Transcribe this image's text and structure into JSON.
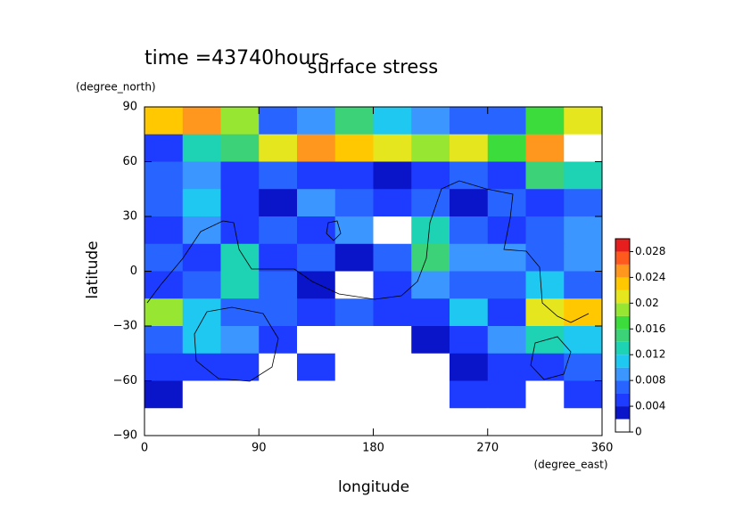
{
  "chart_data": {
    "type": "contour",
    "title": "surface stress",
    "subtitle": "time =43740hours",
    "x_label": "longitude",
    "x_unit": "(degree_east)",
    "y_label": "latitude",
    "y_unit": "(degree_north)",
    "xlim": [
      0,
      360
    ],
    "xticks": [
      0,
      90,
      180,
      270,
      360
    ],
    "ylim": [
      -90,
      90
    ],
    "yticks": [
      {
        "value": -90,
        "label": "−90"
      },
      {
        "value": -60,
        "label": "−60"
      },
      {
        "value": -30,
        "label": "−30"
      },
      0,
      30,
      60,
      90
    ],
    "x": [
      15,
      45,
      75,
      105,
      135,
      165,
      195,
      225,
      255,
      285,
      315,
      345
    ],
    "y": [
      82.5,
      67.5,
      52.5,
      37.5,
      22.5,
      7.5,
      -7.5,
      -22.5,
      -37.5,
      -52.5,
      -67.5,
      -82.5
    ],
    "z": [
      [
        0.022,
        0.024,
        0.018,
        0.006,
        0.008,
        0.014,
        0.01,
        0.008,
        0.006,
        0.006,
        0.016,
        0.02
      ],
      [
        0.004,
        0.012,
        0.014,
        0.02,
        0.024,
        0.022,
        0.02,
        0.018,
        0.02,
        0.016,
        0.024,
        0
      ],
      [
        0.006,
        0.008,
        0.004,
        0.006,
        0.004,
        0.004,
        0.002,
        0.004,
        0.006,
        0.004,
        0.014,
        0.012
      ],
      [
        0.006,
        0.01,
        0.004,
        0.002,
        0.008,
        0.006,
        0.004,
        0.006,
        0.002,
        0.006,
        0.004,
        0.006
      ],
      [
        0.004,
        0.008,
        0.004,
        0.006,
        0.004,
        0.008,
        0.001,
        0.012,
        0.006,
        0.004,
        0.006,
        0.008
      ],
      [
        0.006,
        0.004,
        0.012,
        0.004,
        0.006,
        0.002,
        0.006,
        0.014,
        0.008,
        0.008,
        0.006,
        0.008
      ],
      [
        0.004,
        0.006,
        0.012,
        0.006,
        0.002,
        0.001,
        0.004,
        0.008,
        0.006,
        0.006,
        0.01,
        0.006
      ],
      [
        0.018,
        0.01,
        0.006,
        0.006,
        0.004,
        0.006,
        0.004,
        0.004,
        0.01,
        0.004,
        0.02,
        0.022
      ],
      [
        0.006,
        0.01,
        0.008,
        0.004,
        0,
        0,
        0,
        0.002,
        0.004,
        0.008,
        0.012,
        0.01
      ],
      [
        0.004,
        0.004,
        0.004,
        0,
        0.004,
        0,
        0,
        0,
        0.002,
        0.004,
        0.004,
        0.006
      ],
      [
        0.002,
        0,
        0,
        0,
        0,
        0,
        0,
        0,
        0.004,
        0.004,
        0,
        0.004
      ],
      [
        0,
        0,
        0,
        0,
        0,
        0,
        0,
        0,
        0,
        0,
        0,
        0
      ]
    ],
    "levels": [
      0,
      0.002,
      0.004,
      0.006,
      0.008,
      0.01,
      0.012,
      0.014,
      0.016,
      0.018,
      0.02,
      0.022,
      0.024,
      0.026,
      0.028,
      0.03
    ],
    "colors": [
      "#ffffff",
      "#0a14c8",
      "#1e3cff",
      "#2864ff",
      "#3c96ff",
      "#1ec8f0",
      "#1ed2b4",
      "#3cd278",
      "#3cdc3c",
      "#96e632",
      "#e6e61e",
      "#ffc800",
      "#ff961e",
      "#ff5a1e",
      "#e61e1e"
    ],
    "colorbar_ticks": [
      0,
      0.004,
      0.008,
      0.012,
      0.016,
      0.02,
      0.024,
      0.028
    ]
  }
}
